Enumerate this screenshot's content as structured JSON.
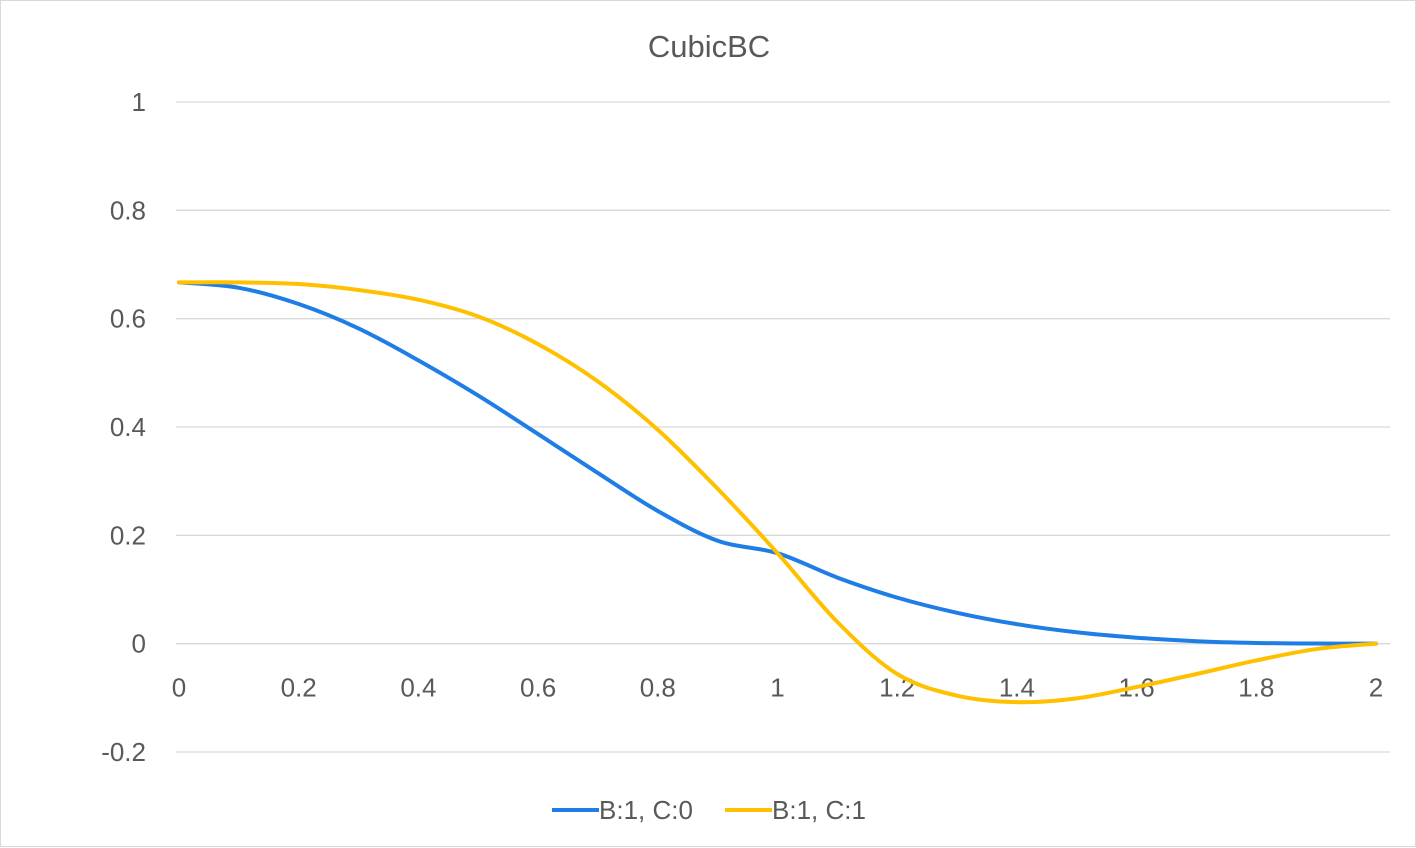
{
  "chart_data": {
    "type": "line",
    "title": "CubicBC",
    "xlabel": "",
    "ylabel": "",
    "xlim": [
      0,
      2
    ],
    "ylim": [
      -0.2,
      1
    ],
    "x_ticks": [
      "0",
      "0.2",
      "0.4",
      "0.6",
      "0.8",
      "1",
      "1.2",
      "1.4",
      "1.6",
      "1.8",
      "2"
    ],
    "y_ticks": [
      "-0.2",
      "0",
      "0.2",
      "0.4",
      "0.6",
      "0.8",
      "1"
    ],
    "grid": true,
    "legend_position": "bottom",
    "x": [
      0,
      0.1,
      0.2,
      0.3,
      0.4,
      0.5,
      0.6,
      0.7,
      0.8,
      0.9,
      1.0,
      1.1,
      1.2,
      1.3,
      1.4,
      1.5,
      1.6,
      1.7,
      1.8,
      1.9,
      2.0
    ],
    "series": [
      {
        "name": "B:1, C:0",
        "color": "#1f7de6",
        "values": [
          0.667,
          0.657,
          0.627,
          0.582,
          0.523,
          0.458,
          0.387,
          0.315,
          0.245,
          0.19,
          0.167,
          0.122,
          0.085,
          0.057,
          0.036,
          0.021,
          0.011,
          0.0045,
          0.0013,
          0.0002,
          0
        ]
      },
      {
        "name": "B:1, C:1",
        "color": "#ffc000",
        "values": [
          0.667,
          0.667,
          0.664,
          0.653,
          0.635,
          0.604,
          0.553,
          0.484,
          0.395,
          0.286,
          0.167,
          0.04,
          -0.056,
          -0.096,
          -0.108,
          -0.101,
          -0.08,
          -0.056,
          -0.031,
          -0.01,
          0
        ]
      }
    ]
  }
}
